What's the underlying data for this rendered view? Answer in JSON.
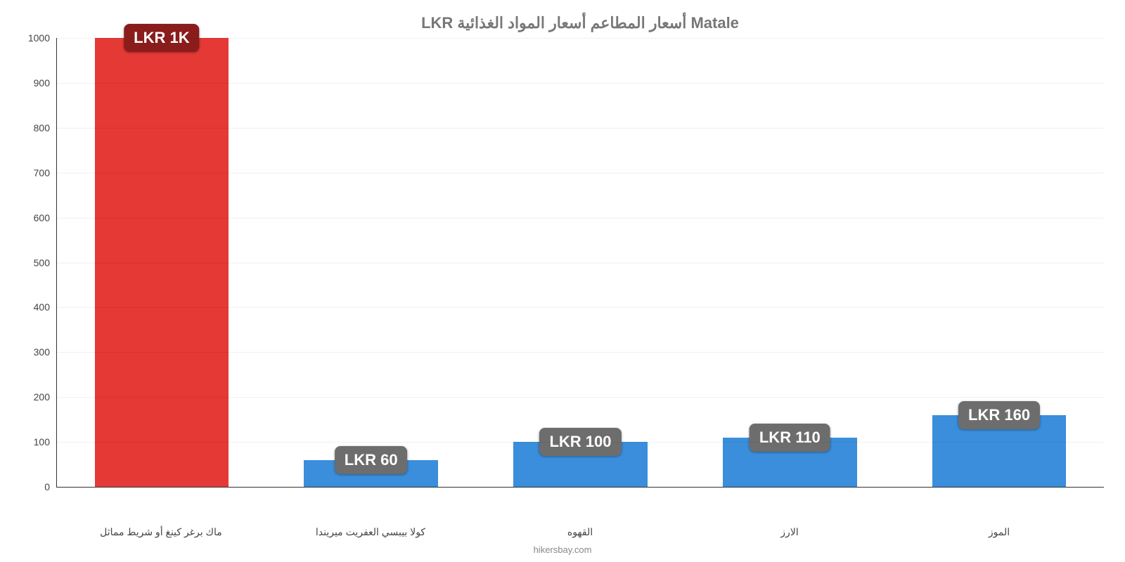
{
  "chart": {
    "type": "bar",
    "title": "LKR أسعار المطاعم أسعار المواد الغذائية Matale",
    "title_color": "#777777",
    "title_fontsize": 22,
    "background_color": "#ffffff",
    "ylim": [
      0,
      1000
    ],
    "yticks": [
      0,
      100,
      200,
      300,
      400,
      500,
      600,
      700,
      800,
      900,
      1000
    ],
    "ytick_fontsize": 14,
    "ytick_color": "#444444",
    "grid_color": "rgba(0,0,0,0.06)",
    "axis_color": "#333333",
    "bar_width_pct": 64,
    "categories": [
      "ماك برغر كينغ أو شريط مماثل",
      "كولا بيبسي العفريت ميريندا",
      "القهوه",
      "الارز",
      "الموز"
    ],
    "values": [
      1000,
      60,
      100,
      110,
      160
    ],
    "value_labels": [
      "LKR 1K",
      "LKR 60",
      "LKR 100",
      "LKR 110",
      "LKR 160"
    ],
    "bar_colors": [
      "#e53935",
      "#3a8edb",
      "#3a8edb",
      "#3a8edb",
      "#3a8edb"
    ],
    "badge_colors": [
      "#8a1c1c",
      "#6d6d6d",
      "#6d6d6d",
      "#6d6d6d",
      "#6d6d6d"
    ],
    "badge_text_color": "#ffffff",
    "badge_fontsize": 22,
    "xlabel_fontsize": 14,
    "xlabel_color": "#444444",
    "footer": "hikersbay.com",
    "footer_color": "#888888",
    "footer_fontsize": 13
  }
}
